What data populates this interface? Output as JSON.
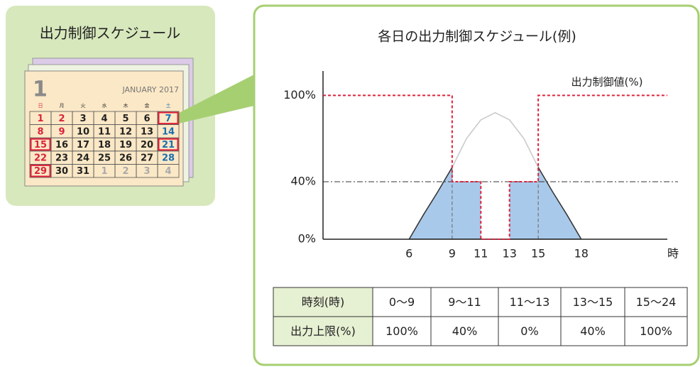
{
  "left_panel": {
    "title": "出力制御スケジュール",
    "calendar": {
      "month": "1",
      "month_label": "JANUARY 2017",
      "weekdays": [
        {
          "text": "日",
          "color": "#d9243c"
        },
        {
          "text": "月",
          "color": "#333333"
        },
        {
          "text": "火",
          "color": "#333333"
        },
        {
          "text": "水",
          "color": "#333333"
        },
        {
          "text": "木",
          "color": "#333333"
        },
        {
          "text": "金",
          "color": "#333333"
        },
        {
          "text": "土",
          "color": "#1a6fb0"
        }
      ],
      "weeks": [
        [
          {
            "text": "1",
            "color": "#d9243c",
            "boxed": false
          },
          {
            "text": "2",
            "color": "#d9243c",
            "boxed": false
          },
          {
            "text": "3",
            "color": "#222222",
            "boxed": false
          },
          {
            "text": "4",
            "color": "#222222",
            "boxed": false
          },
          {
            "text": "5",
            "color": "#222222",
            "boxed": false
          },
          {
            "text": "6",
            "color": "#222222",
            "boxed": false
          },
          {
            "text": "7",
            "color": "#1a6fb0",
            "boxed": true
          }
        ],
        [
          {
            "text": "8",
            "color": "#d9243c",
            "boxed": false
          },
          {
            "text": "9",
            "color": "#d9243c",
            "boxed": false
          },
          {
            "text": "10",
            "color": "#222222",
            "boxed": false
          },
          {
            "text": "11",
            "color": "#222222",
            "boxed": false
          },
          {
            "text": "12",
            "color": "#222222",
            "boxed": false
          },
          {
            "text": "13",
            "color": "#222222",
            "boxed": false
          },
          {
            "text": "14",
            "color": "#1a6fb0",
            "boxed": false
          }
        ],
        [
          {
            "text": "15",
            "color": "#d9243c",
            "boxed": true
          },
          {
            "text": "16",
            "color": "#222222",
            "boxed": false
          },
          {
            "text": "17",
            "color": "#222222",
            "boxed": false
          },
          {
            "text": "18",
            "color": "#222222",
            "boxed": false
          },
          {
            "text": "19",
            "color": "#222222",
            "boxed": false
          },
          {
            "text": "20",
            "color": "#222222",
            "boxed": false
          },
          {
            "text": "21",
            "color": "#1a6fb0",
            "boxed": true
          }
        ],
        [
          {
            "text": "22",
            "color": "#d9243c",
            "boxed": false
          },
          {
            "text": "23",
            "color": "#222222",
            "boxed": false
          },
          {
            "text": "24",
            "color": "#222222",
            "boxed": false
          },
          {
            "text": "25",
            "color": "#222222",
            "boxed": false
          },
          {
            "text": "26",
            "color": "#222222",
            "boxed": false
          },
          {
            "text": "27",
            "color": "#222222",
            "boxed": false
          },
          {
            "text": "28",
            "color": "#1a6fb0",
            "boxed": false
          }
        ],
        [
          {
            "text": "29",
            "color": "#d9243c",
            "boxed": true
          },
          {
            "text": "30",
            "color": "#222222",
            "boxed": false
          },
          {
            "text": "31",
            "color": "#222222",
            "boxed": false
          },
          {
            "text": "1",
            "color": "#aaaaaa",
            "boxed": false
          },
          {
            "text": "2",
            "color": "#aaaaaa",
            "boxed": false
          },
          {
            "text": "3",
            "color": "#aaaaaa",
            "boxed": false
          },
          {
            "text": "4",
            "color": "#aaaaaa",
            "boxed": false
          }
        ]
      ]
    }
  },
  "chart_data": {
    "type": "line",
    "title": "各日の出力制御スケジュール(例)",
    "x_label": "時",
    "xlim": [
      0,
      24
    ],
    "xticks": [
      6,
      9,
      11,
      13,
      15,
      18
    ],
    "ylim": [
      0,
      117
    ],
    "yticks": [
      {
        "value": 0,
        "label": "0%"
      },
      {
        "value": 40,
        "label": "40%"
      },
      {
        "value": 100,
        "label": "100%"
      }
    ],
    "reference_line": 40,
    "series": [
      {
        "name": "出力制御値(%)",
        "color": "#e0203a",
        "x": [
          0,
          9,
          9,
          11,
          11,
          13,
          13,
          15,
          15,
          24
        ],
        "values": [
          100,
          100,
          40,
          40,
          0,
          0,
          40,
          40,
          100,
          100
        ]
      },
      {
        "color": "#c8c8c8",
        "fill": "#a9c9ea",
        "x": [
          6,
          7,
          8,
          9,
          10,
          11,
          12,
          13,
          14,
          15,
          16,
          17,
          18
        ],
        "values": [
          0,
          17,
          33,
          50,
          70,
          83,
          88,
          83,
          70,
          50,
          33,
          17,
          0
        ]
      }
    ]
  },
  "table": {
    "rows": [
      [
        "時刻(時)",
        "0〜9",
        "9〜11",
        "11〜13",
        "13〜15",
        "15〜24"
      ],
      [
        "出力上限(%)",
        "100%",
        "40%",
        "0%",
        "40%",
        "100%"
      ]
    ]
  }
}
